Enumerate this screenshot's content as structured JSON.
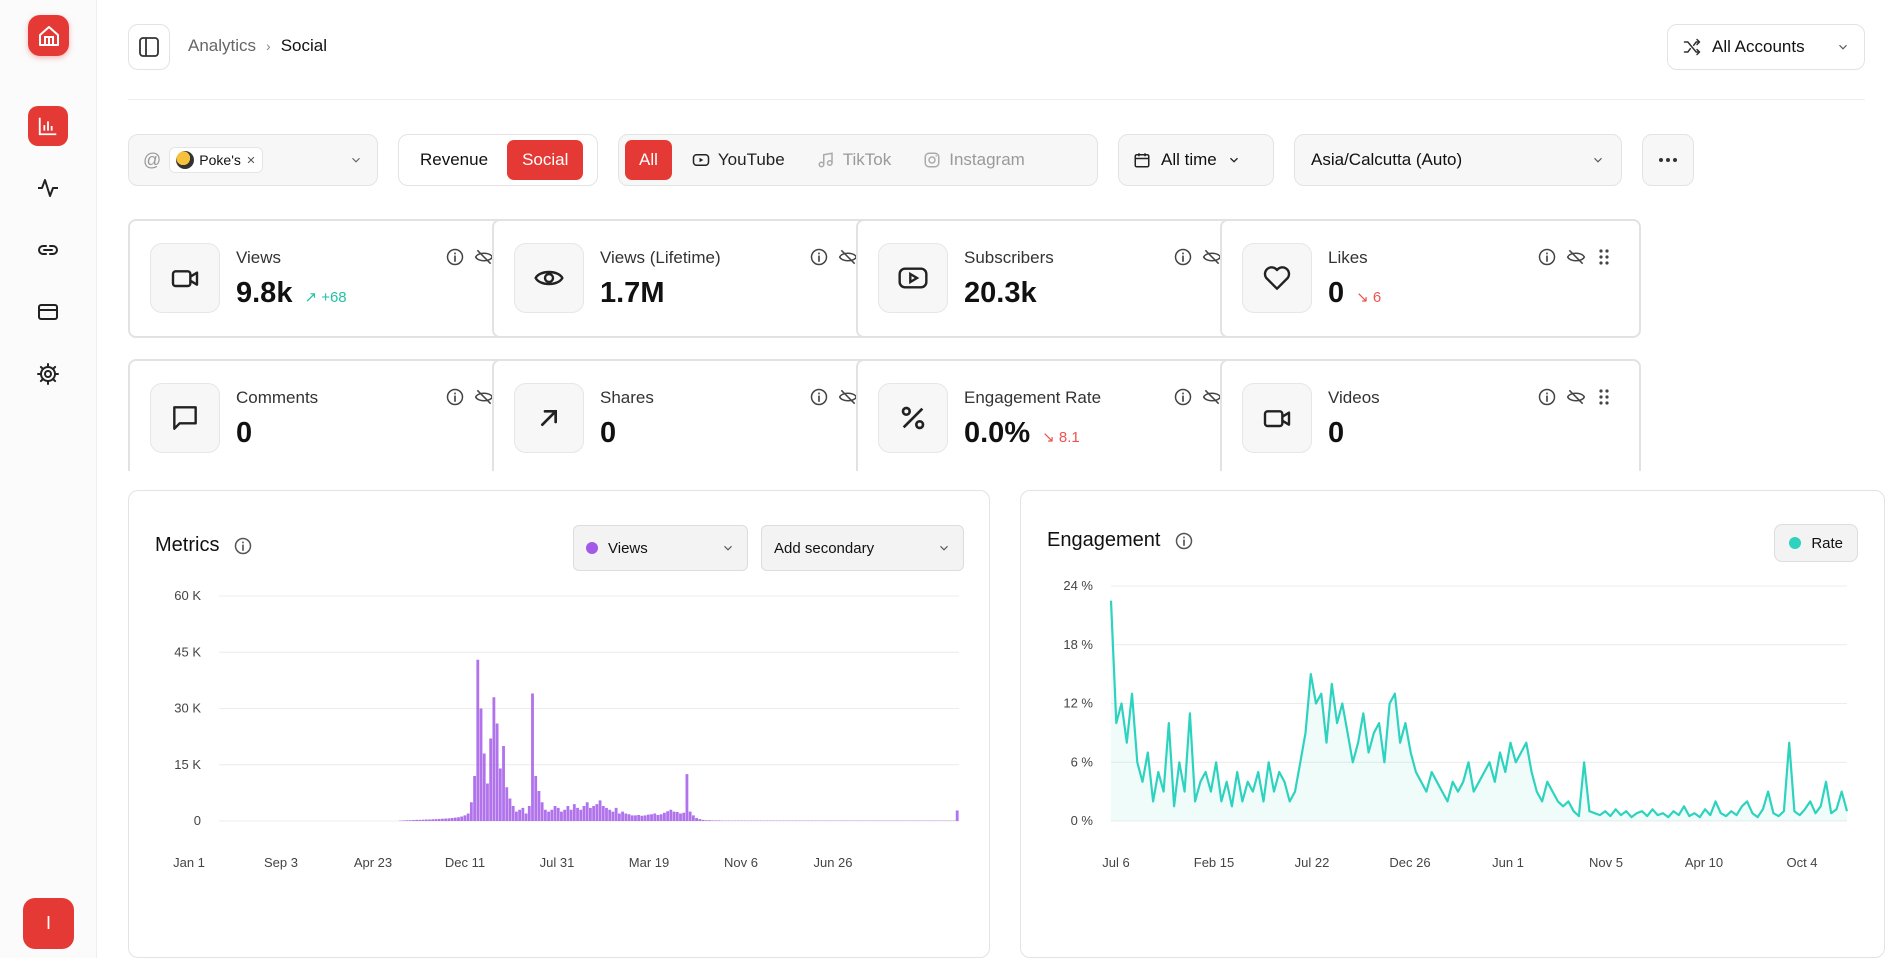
{
  "header": {
    "breadcrumb_parent": "Analytics",
    "breadcrumb_sep": "›",
    "breadcrumb_current": "Social",
    "accounts_label": "All Accounts"
  },
  "sidebar": {
    "items": [
      {
        "icon": "bar-chart-icon",
        "active": true
      },
      {
        "icon": "activity-icon",
        "active": false
      },
      {
        "icon": "link-icon",
        "active": false
      },
      {
        "icon": "credit-card-icon",
        "active": false
      },
      {
        "icon": "gear-icon",
        "active": false
      }
    ],
    "user_initial": "I"
  },
  "filters": {
    "account_prefix": "@",
    "account_chip": "Poke's",
    "segment": [
      {
        "label": "Revenue",
        "on": false
      },
      {
        "label": "Social",
        "on": true
      }
    ],
    "platforms": [
      {
        "label": "All",
        "on": true
      },
      {
        "label": "YouTube",
        "on": false
      },
      {
        "label": "TikTok",
        "on": false,
        "dim": true
      },
      {
        "label": "Instagram",
        "on": false,
        "dim": true
      }
    ],
    "date_range": "All time",
    "timezone": "Asia/Calcutta (Auto)"
  },
  "stats": [
    {
      "label": "Views",
      "value": "9.8k",
      "delta": "+68",
      "dir": "up",
      "icon": "video-icon"
    },
    {
      "label": "Views (Lifetime)",
      "value": "1.7M",
      "icon": "eye-icon"
    },
    {
      "label": "Subscribers",
      "value": "20.3k",
      "icon": "youtube-icon"
    },
    {
      "label": "Likes",
      "value": "0",
      "delta": "6",
      "dir": "down",
      "icon": "heart-icon"
    },
    {
      "label": "Comments",
      "value": "0",
      "icon": "comment-icon"
    },
    {
      "label": "Shares",
      "value": "0",
      "icon": "share-arrow-icon"
    },
    {
      "label": "Engagement Rate",
      "value": "0.0%",
      "delta": "8.1",
      "dir": "down",
      "icon": "percent-icon"
    },
    {
      "label": "Videos",
      "value": "0",
      "icon": "video-icon"
    }
  ],
  "metrics_panel": {
    "title": "Metrics",
    "primary_metric": "Views",
    "primary_color": "#a35ae8",
    "secondary_label": "Add secondary"
  },
  "engagement_panel": {
    "title": "Engagement",
    "legend": "Rate",
    "legend_color": "#2ed3bf"
  },
  "chart_data": [
    {
      "type": "bar",
      "title": "Metrics",
      "series": [
        {
          "name": "Views"
        }
      ],
      "y_ticks": [
        "60 K",
        "45 K",
        "30 K",
        "15 K",
        "0"
      ],
      "ylim": [
        0,
        60000
      ],
      "x_ticks": [
        "Jan 1",
        "Sep 3",
        "Apr 23",
        "Dec 11",
        "Jul 31",
        "Mar 19",
        "Nov 6",
        "Jun 26"
      ],
      "grid": true,
      "values": [
        0,
        0,
        0,
        0,
        0,
        0,
        0,
        0,
        0,
        0,
        0,
        0,
        0,
        0,
        0,
        0,
        0,
        0,
        0,
        0,
        0,
        0,
        0,
        0,
        0,
        0,
        0,
        0,
        0,
        0,
        0,
        0,
        0,
        0,
        0,
        0,
        0,
        0,
        0,
        0,
        0,
        0,
        0,
        0,
        0,
        0,
        0,
        0,
        0,
        0,
        0,
        0,
        0,
        0,
        0,
        0,
        100,
        150,
        200,
        200,
        250,
        300,
        300,
        350,
        400,
        400,
        450,
        500,
        550,
        600,
        650,
        700,
        800,
        900,
        1000,
        1200,
        1500,
        2000,
        5000,
        12000,
        43000,
        30000,
        18000,
        10000,
        22000,
        33000,
        26000,
        14000,
        20000,
        9000,
        6000,
        4000,
        2500,
        3000,
        3500,
        2000,
        4000,
        34000,
        12000,
        8000,
        5000,
        3000,
        2500,
        3000,
        4000,
        3500,
        2500,
        3000,
        4000,
        3000,
        4500,
        3500,
        3000,
        4000,
        5000,
        3500,
        4000,
        4500,
        5500,
        4000,
        3500,
        3000,
        2500,
        3500,
        2000,
        2500,
        2000,
        1800,
        1500,
        1500,
        1600,
        1400,
        1500,
        1700,
        1800,
        2000,
        1600,
        1800,
        2200,
        2600,
        3000,
        2500,
        2400,
        2000,
        2200,
        12500,
        2500,
        1500,
        800,
        500,
        300,
        200,
        200,
        150,
        150,
        150,
        100,
        100,
        100,
        100,
        100,
        100,
        100,
        100,
        100,
        100,
        100,
        100,
        100,
        100,
        100,
        100,
        100,
        100,
        100,
        100,
        100,
        100,
        100,
        100,
        100,
        100,
        100,
        100,
        100,
        100,
        100,
        100,
        100,
        100,
        100,
        100,
        100,
        100,
        100,
        100,
        100,
        100,
        100,
        100,
        100,
        100,
        100,
        100,
        100,
        100,
        100,
        100,
        100,
        100,
        100,
        100,
        100,
        100,
        100,
        100,
        100,
        100,
        100,
        100,
        100,
        100,
        100,
        100,
        100,
        100,
        100,
        100,
        100,
        2800
      ]
    },
    {
      "type": "area",
      "title": "Engagement",
      "series": [
        {
          "name": "Rate"
        }
      ],
      "y_ticks": [
        "24 %",
        "18 %",
        "12 %",
        "6 %",
        "0 %"
      ],
      "ylim": [
        0,
        24
      ],
      "x_ticks": [
        "Jul 6",
        "Feb 15",
        "Jul 22",
        "Dec 26",
        "Jun 1",
        "Nov 5",
        "Apr 10",
        "Oct 4"
      ],
      "grid": true,
      "values": [
        22.5,
        10,
        12,
        8,
        13,
        6,
        4,
        7,
        2,
        5,
        3,
        10,
        1.5,
        6,
        3,
        11,
        2,
        4,
        5,
        3,
        6,
        2,
        4,
        1.5,
        5,
        2,
        4,
        3,
        5,
        2,
        6,
        3,
        5,
        4,
        2,
        3,
        6,
        9,
        15,
        12,
        13,
        8,
        14,
        10,
        12,
        9,
        6,
        8,
        11,
        7,
        9,
        10,
        6,
        12,
        13,
        8,
        10,
        7,
        5,
        4,
        3,
        5,
        4,
        3,
        2,
        4,
        3,
        4,
        6,
        3,
        4,
        5,
        6,
        4,
        7,
        5,
        8,
        6,
        7,
        8,
        5,
        3,
        2,
        4,
        3,
        2,
        1.5,
        2,
        1,
        0.5,
        6,
        1,
        0.8,
        0.6,
        1,
        0.5,
        1.2,
        0.6,
        1,
        0.4,
        0.8,
        1,
        0.5,
        1.2,
        0.6,
        0.8,
        0.4,
        1,
        0.6,
        1.5,
        0.5,
        0.8,
        0.4,
        1.2,
        0.6,
        2,
        0.8,
        0.5,
        1,
        0.6,
        1.5,
        2,
        0.8,
        0.4,
        1.2,
        3,
        0.8,
        0.5,
        1,
        8,
        1,
        0.6,
        1.2,
        2,
        0.8,
        1.5,
        4,
        0.8,
        1.2,
        3,
        1
      ]
    }
  ]
}
